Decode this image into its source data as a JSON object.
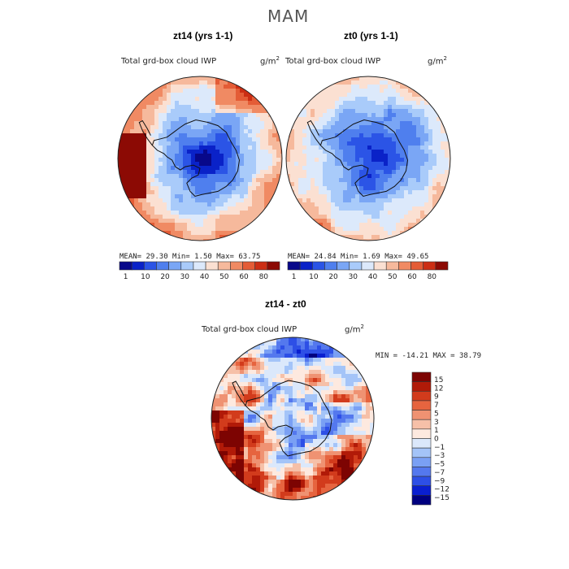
{
  "super_title": "MAM",
  "colors": {
    "abs": [
      "#08088a",
      "#0a22c8",
      "#2b54e6",
      "#4f7fee",
      "#7aa6f5",
      "#a9cbfa",
      "#dce9fb",
      "#fbe0d2",
      "#f6b99c",
      "#f08a63",
      "#e45c36",
      "#cc2e14",
      "#8c0a04"
    ],
    "diff": [
      "#000080",
      "#0a1fd0",
      "#2d4fe6",
      "#5478ee",
      "#7aa0f4",
      "#a4c4f8",
      "#dbe8fb",
      "#fde9df",
      "#f6c0a8",
      "#ef9272",
      "#e6643f",
      "#d23b1c",
      "#b11a08",
      "#7d0402"
    ]
  },
  "chart_data": [
    {
      "type": "heatmap",
      "panel": "left",
      "title": "zt14 (yrs 1-1)",
      "field": "Total grd-box cloud IWP",
      "units_base": "g/m",
      "units_exp": "2",
      "stats": {
        "mean_label": "MEAN=",
        "mean": "29.30",
        "min_label": "Min=",
        "min": "1.50",
        "max_label": "Max=",
        "max": "63.75"
      },
      "colorbar_ticks": [
        "1",
        "10",
        "20",
        "30",
        "40",
        "50",
        "60",
        "80"
      ]
    },
    {
      "type": "heatmap",
      "panel": "right",
      "title": "zt0 (yrs 1-1)",
      "field": "Total grd-box cloud IWP",
      "units_base": "g/m",
      "units_exp": "2",
      "stats": {
        "mean_label": "MEAN=",
        "mean": "24.84",
        "min_label": "Min=",
        "min": "1.69",
        "max_label": "Max=",
        "max": "49.65"
      },
      "colorbar_ticks": [
        "1",
        "10",
        "20",
        "30",
        "40",
        "50",
        "60",
        "80"
      ]
    },
    {
      "type": "heatmap",
      "panel": "difference",
      "title": "zt14 - zt0",
      "field": "Total grd-box cloud IWP",
      "units_base": "g/m",
      "units_exp": "2",
      "stats": {
        "min_label": "MIN =",
        "min": "-14.21",
        "max_label": "MAX =",
        "max": "38.79"
      },
      "colorbar_ticks": [
        "15",
        "12",
        "9",
        "7",
        "5",
        "3",
        "1",
        "0",
        "−1",
        "−3",
        "−5",
        "−7",
        "−9",
        "−12",
        "−15"
      ]
    }
  ]
}
